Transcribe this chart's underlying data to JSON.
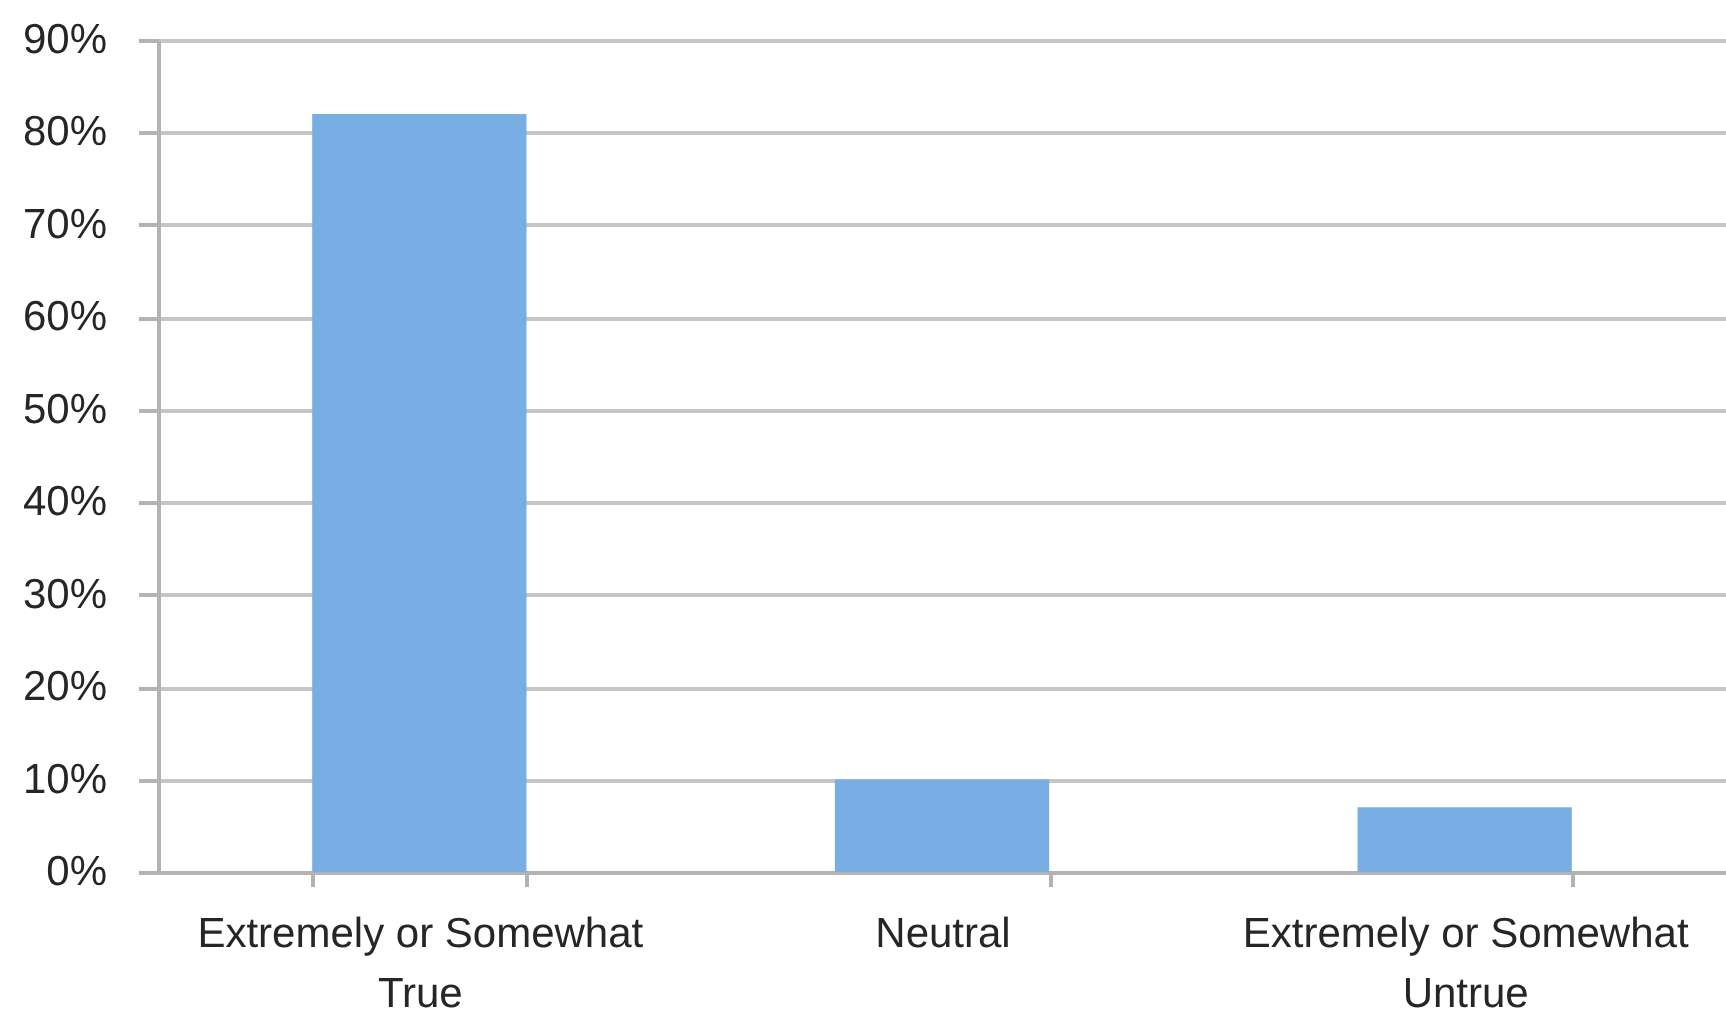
{
  "chart_data": {
    "type": "bar",
    "categories": [
      "Extremely or Somewhat True",
      "Neutral",
      "Extremely or Somewhat Untrue"
    ],
    "values": [
      82,
      10,
      7
    ],
    "color": "#78aee4",
    "ylim": [
      0,
      90
    ],
    "yticks": [
      {
        "value": 0,
        "label": "0%"
      },
      {
        "value": 10,
        "label": "10%"
      },
      {
        "value": 20,
        "label": "20%"
      },
      {
        "value": 30,
        "label": "30%"
      },
      {
        "value": 40,
        "label": "40%"
      },
      {
        "value": 50,
        "label": "50%"
      },
      {
        "value": 60,
        "label": "60%"
      },
      {
        "value": 70,
        "label": "70%"
      },
      {
        "value": 80,
        "label": "80%"
      },
      {
        "value": 90,
        "label": "90%"
      }
    ],
    "grid": "y"
  }
}
